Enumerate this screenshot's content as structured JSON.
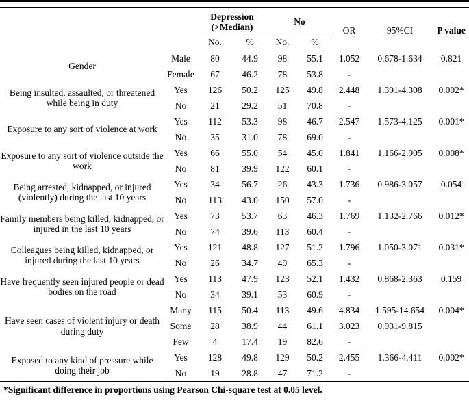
{
  "header": {
    "group_depression": "Depression (>Median)",
    "group_no": "No",
    "sub_no": "No.",
    "sub_pct": "%",
    "or": "OR",
    "ci": "95%CI",
    "p_value": "P value"
  },
  "groups": [
    {
      "label": "Gender",
      "centered": true,
      "rows": [
        {
          "sub": "Male",
          "n1": "80",
          "p1": "44.9",
          "n2": "98",
          "p2": "55.1",
          "or": "1.052",
          "ci": "0.678-1.634",
          "p": "0.821"
        },
        {
          "sub": "Female",
          "n1": "67",
          "p1": "46.2",
          "n2": "78",
          "p2": "53.8",
          "or": "-",
          "ci": "",
          "p": ""
        }
      ]
    },
    {
      "label": "Being insulted, assaulted, or threatened while being in duty",
      "centered": false,
      "rows": [
        {
          "sub": "Yes",
          "n1": "126",
          "p1": "50.2",
          "n2": "125",
          "p2": "49.8",
          "or": "2.448",
          "ci": "1.391-4.308",
          "p": "0.002*"
        },
        {
          "sub": "No",
          "n1": "21",
          "p1": "29.2",
          "n2": "51",
          "p2": "70.8",
          "or": "-",
          "ci": "",
          "p": ""
        }
      ]
    },
    {
      "label": "Exposure to any sort of violence at work",
      "centered": false,
      "rows": [
        {
          "sub": "Yes",
          "n1": "112",
          "p1": "53.3",
          "n2": "98",
          "p2": "46.7",
          "or": "2.547",
          "ci": "1.573-4.125",
          "p": "0.001*"
        },
        {
          "sub": "No",
          "n1": "35",
          "p1": "31.0",
          "n2": "78",
          "p2": "69.0",
          "or": "-",
          "ci": "",
          "p": ""
        }
      ]
    },
    {
      "label": "Exposure to any sort of violence outside the work",
      "centered": false,
      "rows": [
        {
          "sub": "Yes",
          "n1": "66",
          "p1": "55.0",
          "n2": "54",
          "p2": "45.0",
          "or": "1.841",
          "ci": "1.166-2.905",
          "p": "0.008*"
        },
        {
          "sub": "No",
          "n1": "81",
          "p1": "39.9",
          "n2": "122",
          "p2": "60.1",
          "or": "-",
          "ci": "",
          "p": ""
        }
      ]
    },
    {
      "label": "Being arrested, kidnapped, or injured (violently) during the last 10 years",
      "centered": false,
      "rows": [
        {
          "sub": "Yes",
          "n1": "34",
          "p1": "56.7",
          "n2": "26",
          "p2": "43.3",
          "or": "1.736",
          "ci": "0.986-3.057",
          "p": "0.054"
        },
        {
          "sub": "No",
          "n1": "113",
          "p1": "43.0",
          "n2": "150",
          "p2": "57.0",
          "or": "-",
          "ci": "",
          "p": ""
        }
      ]
    },
    {
      "label": "Family members being killed, kidnapped, or injured in the last 10 years",
      "centered": false,
      "rows": [
        {
          "sub": "Yes",
          "n1": "73",
          "p1": "53.7",
          "n2": "63",
          "p2": "46.3",
          "or": "1.769",
          "ci": "1.132-2.766",
          "p": "0.012*"
        },
        {
          "sub": "No",
          "n1": "74",
          "p1": "39.6",
          "n2": "113",
          "p2": "60.4",
          "or": "-",
          "ci": "",
          "p": ""
        }
      ]
    },
    {
      "label": "Colleagues being killed, kidnapped, or injured during the last 10 years",
      "centered": false,
      "rows": [
        {
          "sub": "Yes",
          "n1": "121",
          "p1": "48.8",
          "n2": "127",
          "p2": "51.2",
          "or": "1.796",
          "ci": "1.050-3.071",
          "p": "0.031*"
        },
        {
          "sub": "No",
          "n1": "26",
          "p1": "34.7",
          "n2": "49",
          "p2": "65.3",
          "or": "-",
          "ci": "",
          "p": ""
        }
      ]
    },
    {
      "label": "Have frequently seen injured people or dead bodies on the road",
      "centered": false,
      "rows": [
        {
          "sub": "Yes",
          "n1": "113",
          "p1": "47.9",
          "n2": "123",
          "p2": "52.1",
          "or": "1.432",
          "ci": "0.868-2.363",
          "p": "0.159"
        },
        {
          "sub": "No",
          "n1": "34",
          "p1": "39.1",
          "n2": "53",
          "p2": "60.9",
          "or": "-",
          "ci": "",
          "p": ""
        }
      ]
    },
    {
      "label": "Have seen cases of violent injury or death during duty",
      "centered": false,
      "rows": [
        {
          "sub": "Many",
          "n1": "115",
          "p1": "50.4",
          "n2": "113",
          "p2": "49.6",
          "or": "4.834",
          "ci": "1.595-14.654",
          "p": "0.004*"
        },
        {
          "sub": "Some",
          "n1": "28",
          "p1": "38.9",
          "n2": "44",
          "p2": "61.1",
          "or": "3.023",
          "ci": "0.931-9.815",
          "p": ""
        },
        {
          "sub": "Few",
          "n1": "4",
          "p1": "17.4",
          "n2": "19",
          "p2": "82.6",
          "or": "-",
          "ci": "",
          "p": ""
        }
      ]
    },
    {
      "label": "Exposed to any kind of pressure while doing their job",
      "centered": false,
      "rows": [
        {
          "sub": "Yes",
          "n1": "128",
          "p1": "49.8",
          "n2": "129",
          "p2": "50.2",
          "or": "2.455",
          "ci": "1.366-4.411",
          "p": "0.002*"
        },
        {
          "sub": "No",
          "n1": "19",
          "p1": "28.8",
          "n2": "47",
          "p2": "71.2",
          "or": "-",
          "ci": "",
          "p": ""
        }
      ]
    }
  ],
  "footnote": "*Significant difference in proportions using Pearson Chi-square test at 0.05 level."
}
